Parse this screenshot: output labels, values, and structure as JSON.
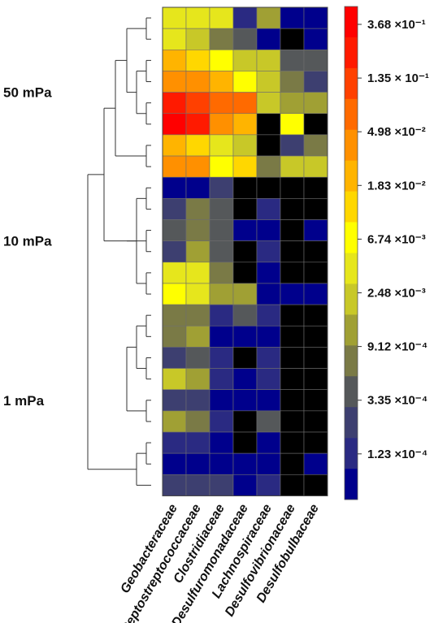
{
  "chart_data": {
    "type": "heatmap",
    "columns": [
      "Geobacteraceae",
      "Peptostreptococcaceae",
      "Clostridiaceae",
      "Desulfuromonadaceae",
      "Lachnospiraceae",
      "Desulfovibrionaceae",
      "Desulfobulbaceae"
    ],
    "groups": [
      {
        "label": "50 mPa",
        "rows": [
          0,
          1,
          2,
          3,
          4,
          5,
          6,
          7
        ]
      },
      {
        "label": "10 mPa",
        "rows": [
          8,
          9,
          10,
          11,
          12,
          13
        ]
      },
      {
        "label": "1 mPa",
        "rows": [
          14,
          15,
          16,
          17,
          18,
          19,
          20,
          21,
          22
        ]
      }
    ],
    "color_bins": [
      "#000000",
      "#00008c",
      "#2a2a82",
      "#3d3f70",
      "#55585a",
      "#7a7a46",
      "#a0a034",
      "#c8c828",
      "#e6e61c",
      "#ffff00",
      "#ffd700",
      "#ffb400",
      "#ff9000",
      "#ff6a00",
      "#ff4000",
      "#ff1a00",
      "#ff0000"
    ],
    "cells": [
      [
        8,
        8,
        8,
        2,
        6,
        1,
        1
      ],
      [
        8,
        7,
        5,
        4,
        1,
        0,
        1
      ],
      [
        11,
        10,
        9,
        7,
        7,
        4,
        4
      ],
      [
        12,
        12,
        11,
        9,
        7,
        5,
        3
      ],
      [
        15,
        14,
        13,
        13,
        7,
        6,
        6
      ],
      [
        16,
        15,
        12,
        11,
        0,
        9,
        0
      ],
      [
        11,
        10,
        8,
        7,
        0,
        3,
        5
      ],
      [
        12,
        12,
        9,
        10,
        5,
        7,
        7
      ],
      [
        1,
        1,
        3,
        0,
        0,
        0,
        0
      ],
      [
        3,
        5,
        4,
        0,
        2,
        0,
        0
      ],
      [
        4,
        5,
        4,
        1,
        1,
        0,
        1
      ],
      [
        3,
        6,
        4,
        0,
        2,
        0,
        0
      ],
      [
        8,
        8,
        5,
        0,
        1,
        0,
        0
      ],
      [
        9,
        8,
        6,
        6,
        1,
        1,
        1
      ],
      [
        5,
        5,
        2,
        4,
        2,
        0,
        0
      ],
      [
        5,
        6,
        1,
        1,
        1,
        0,
        0
      ],
      [
        3,
        4,
        2,
        0,
        2,
        0,
        0
      ],
      [
        7,
        6,
        2,
        1,
        2,
        0,
        0
      ],
      [
        3,
        3,
        1,
        1,
        1,
        0,
        0
      ],
      [
        6,
        5,
        2,
        0,
        4,
        0,
        0
      ],
      [
        2,
        2,
        1,
        0,
        1,
        0,
        0
      ],
      [
        1,
        1,
        1,
        1,
        1,
        0,
        1
      ],
      [
        3,
        3,
        3,
        1,
        2,
        0,
        0
      ]
    ],
    "dendrogram_links": [
      [
        0,
        1
      ],
      [
        2,
        3
      ],
      [
        4,
        5
      ],
      [
        6,
        7
      ],
      [
        24,
        25
      ],
      [
        23,
        27
      ],
      [
        26,
        28
      ],
      [
        10,
        11
      ],
      [
        12,
        13
      ],
      [
        8,
        9
      ],
      [
        31,
        32
      ],
      [
        30,
        33
      ],
      [
        34,
        29
      ],
      [
        14,
        15
      ],
      [
        16,
        17
      ],
      [
        18,
        19
      ],
      [
        20,
        21
      ],
      [
        36,
        37
      ],
      [
        39,
        22
      ],
      [
        38,
        40
      ],
      [
        35,
        41
      ]
    ],
    "legend_colors": [
      "#ff0000",
      "#ff1a00",
      "#ff4000",
      "#ff6a00",
      "#ff9000",
      "#ffb400",
      "#ffd700",
      "#ffff00",
      "#e6e61c",
      "#c8c828",
      "#a0a034",
      "#7a7a46",
      "#55585a",
      "#3d3f70",
      "#2a2a82",
      "#00008c"
    ],
    "legend_labels": [
      "3.68 ×10⁻¹",
      "1.35 × 10⁻¹",
      "4.98 ×10⁻²",
      "1.83 ×10⁻²",
      "6.74 ×10⁻³",
      "2.48 ×10⁻³",
      "9.12 ×10⁻⁴",
      "3.35 ×10⁻⁴",
      "1.23 ×10⁻⁴"
    ]
  }
}
